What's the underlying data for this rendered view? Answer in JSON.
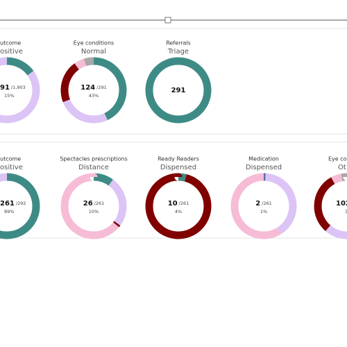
{
  "chart_data": [
    {
      "type": "donut",
      "title": "utcome",
      "subtitle": "ositive",
      "center_value": "91",
      "center_total": "/1,903",
      "center_percent": "15%",
      "values": [
        15,
        85
      ],
      "colors": [
        "#3e8b86",
        "#dcc4f6"
      ]
    },
    {
      "type": "donut",
      "title": "Eye conditions",
      "subtitle": "Normal",
      "center_value": "124",
      "center_total": "/291",
      "center_percent": "43%",
      "values": [
        43,
        26,
        21,
        5,
        5
      ],
      "colors": [
        "#3e8b86",
        "#dcc4f6",
        "#800000",
        "#f6bcd6",
        "#a8a8a8"
      ]
    },
    {
      "type": "donut",
      "title": "Referrals",
      "subtitle": "Triage",
      "center_value": "291",
      "values": [
        100
      ],
      "colors": [
        "#3e8b86"
      ]
    },
    {
      "type": "donut",
      "title": "utcome",
      "subtitle": "ositive",
      "center_value": "261",
      "center_total": "/292",
      "center_percent": "89%",
      "values": [
        89,
        11
      ],
      "colors": [
        "#3e8b86",
        "#dcc4f6"
      ]
    },
    {
      "type": "donut",
      "title": "Spectacles prescriptions",
      "subtitle": "Distance",
      "center_value": "26",
      "center_total": "/261",
      "center_percent": "10%",
      "values": [
        10,
        25,
        1,
        64
      ],
      "colors": [
        "#3e8b86",
        "#dcc4f6",
        "#800000",
        "#f6bcd6"
      ]
    },
    {
      "type": "donut",
      "title": "Ready Readers",
      "subtitle": "Dispensed",
      "center_value": "10",
      "center_total": "/261",
      "center_percent": "4%",
      "values": [
        4,
        96
      ],
      "colors": [
        "#3e8b86",
        "#800000"
      ]
    },
    {
      "type": "donut",
      "title": "Medication",
      "subtitle": "Dispensed",
      "center_value": "2",
      "center_total": "/261",
      "center_percent": "1%",
      "values": [
        1,
        40,
        59
      ],
      "colors": [
        "#5a6fa8",
        "#dcc4f6",
        "#f6bcd6"
      ]
    },
    {
      "type": "donut",
      "title": "Eye co",
      "subtitle": "Ot",
      "center_value": "102",
      "center_percent": "3",
      "values": [
        40,
        20,
        30,
        5,
        3
      ],
      "colors": [
        "#3e8b86",
        "#dcc4f6",
        "#800000",
        "#f6bcd6",
        "#a8a8a8"
      ]
    }
  ]
}
